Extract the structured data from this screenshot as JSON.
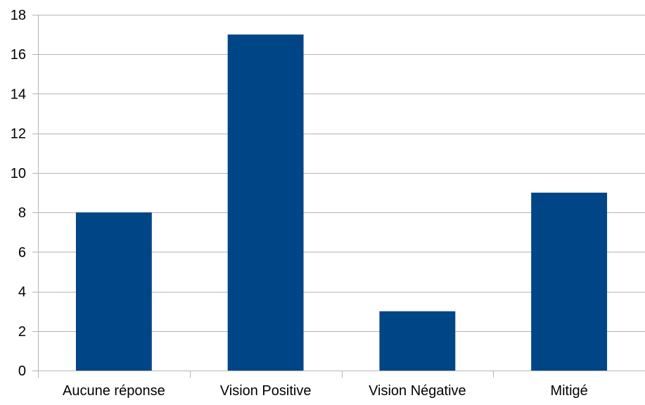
{
  "chart_data": {
    "type": "bar",
    "categories": [
      "Aucune réponse",
      "Vision Positive",
      "Vision Négative",
      "Mitigé"
    ],
    "values": [
      8,
      17,
      3,
      9
    ],
    "ylim": [
      0,
      18
    ],
    "ytick_step": 2,
    "yticks": [
      "0",
      "2",
      "4",
      "6",
      "8",
      "10",
      "12",
      "14",
      "16",
      "18"
    ],
    "grid": "horizontal",
    "legend": "none",
    "colors": {
      "bar": "#004586",
      "grid": "#b3b3b3",
      "axis": "#b3b3b3",
      "text": "#000000"
    }
  }
}
